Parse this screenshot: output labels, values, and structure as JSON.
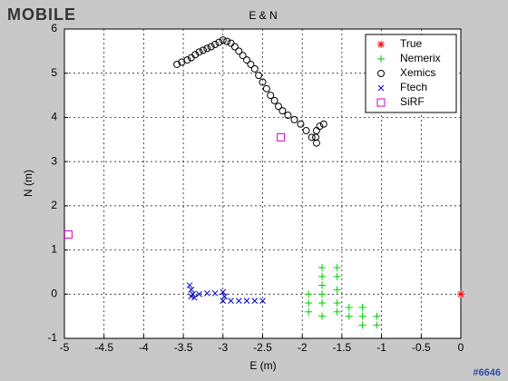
{
  "chart_data": {
    "type": "scatter",
    "title": "E & N",
    "x_label": "E (m)",
    "y_label": "N (m)",
    "xlim": [
      -5,
      0
    ],
    "ylim": [
      -1,
      6
    ],
    "xticks": [
      -5,
      -4.5,
      -4,
      -3.5,
      -3,
      -2.5,
      -2,
      -1.5,
      -1,
      -0.5,
      0
    ],
    "yticks": [
      -1,
      0,
      1,
      2,
      3,
      4,
      5,
      6
    ],
    "grid": true,
    "legend_position": "upper-right",
    "series": [
      {
        "name": "True",
        "color": "#ff0000",
        "marker": "asterisk",
        "x": [
          0
        ],
        "y": [
          0
        ]
      },
      {
        "name": "Nemerix",
        "color": "#00cc00",
        "marker": "plus",
        "x": [
          -1.92,
          -1.92,
          -1.92,
          -1.75,
          -1.75,
          -1.75,
          -1.75,
          -1.75,
          -1.75,
          -1.56,
          -1.56,
          -1.56,
          -1.56,
          -1.56,
          -1.41,
          -1.41,
          -1.24,
          -1.24,
          -1.24,
          -1.06,
          -1.06
        ],
        "y": [
          0,
          -0.2,
          -0.4,
          0.6,
          0.4,
          0.2,
          0,
          -0.2,
          -0.5,
          0.6,
          0.4,
          0.1,
          -0.2,
          -0.4,
          -0.3,
          -0.5,
          -0.3,
          -0.5,
          -0.7,
          -0.5,
          -0.7
        ]
      },
      {
        "name": "Xemics",
        "color": "#000000",
        "marker": "circle",
        "x": [
          -3.58,
          -3.52,
          -3.45,
          -3.4,
          -3.35,
          -3.3,
          -3.25,
          -3.2,
          -3.15,
          -3.1,
          -3.05,
          -3.0,
          -2.95,
          -2.9,
          -2.85,
          -2.8,
          -2.75,
          -2.7,
          -2.65,
          -2.6,
          -2.55,
          -2.5,
          -2.45,
          -2.4,
          -2.35,
          -2.3,
          -2.25,
          -2.18,
          -2.1,
          -2.02,
          -1.95,
          -1.88,
          -1.82,
          -1.83,
          -1.82,
          -1.78,
          -1.73
        ],
        "y": [
          5.2,
          5.25,
          5.3,
          5.35,
          5.42,
          5.48,
          5.52,
          5.56,
          5.6,
          5.65,
          5.7,
          5.75,
          5.72,
          5.68,
          5.6,
          5.5,
          5.4,
          5.3,
          5.2,
          5.1,
          4.95,
          4.8,
          4.65,
          4.5,
          4.38,
          4.25,
          4.15,
          4.05,
          3.95,
          3.85,
          3.7,
          3.55,
          3.42,
          3.55,
          3.7,
          3.8,
          3.85
        ]
      },
      {
        "name": "Ftech",
        "color": "#0000cc",
        "marker": "x",
        "x": [
          -3.42,
          -3.4,
          -3.38,
          -3.36,
          -3.4,
          -3.3,
          -3.2,
          -3.1,
          -3.0,
          -2.98,
          -3.0,
          -2.9,
          -2.8,
          -2.7,
          -2.6,
          -2.5
        ],
        "y": [
          0.2,
          0.1,
          0,
          -0.08,
          -0.05,
          0,
          0.02,
          0.02,
          0.05,
          -0.05,
          -0.15,
          -0.15,
          -0.15,
          -0.15,
          -0.15,
          -0.15
        ]
      },
      {
        "name": "SiRF",
        "color": "#cc00cc",
        "marker": "square",
        "x": [
          -4.95,
          -2.27
        ],
        "y": [
          1.35,
          3.55
        ]
      }
    ]
  },
  "watermark": {
    "logo": "MOBILE",
    "id": "#6646"
  }
}
